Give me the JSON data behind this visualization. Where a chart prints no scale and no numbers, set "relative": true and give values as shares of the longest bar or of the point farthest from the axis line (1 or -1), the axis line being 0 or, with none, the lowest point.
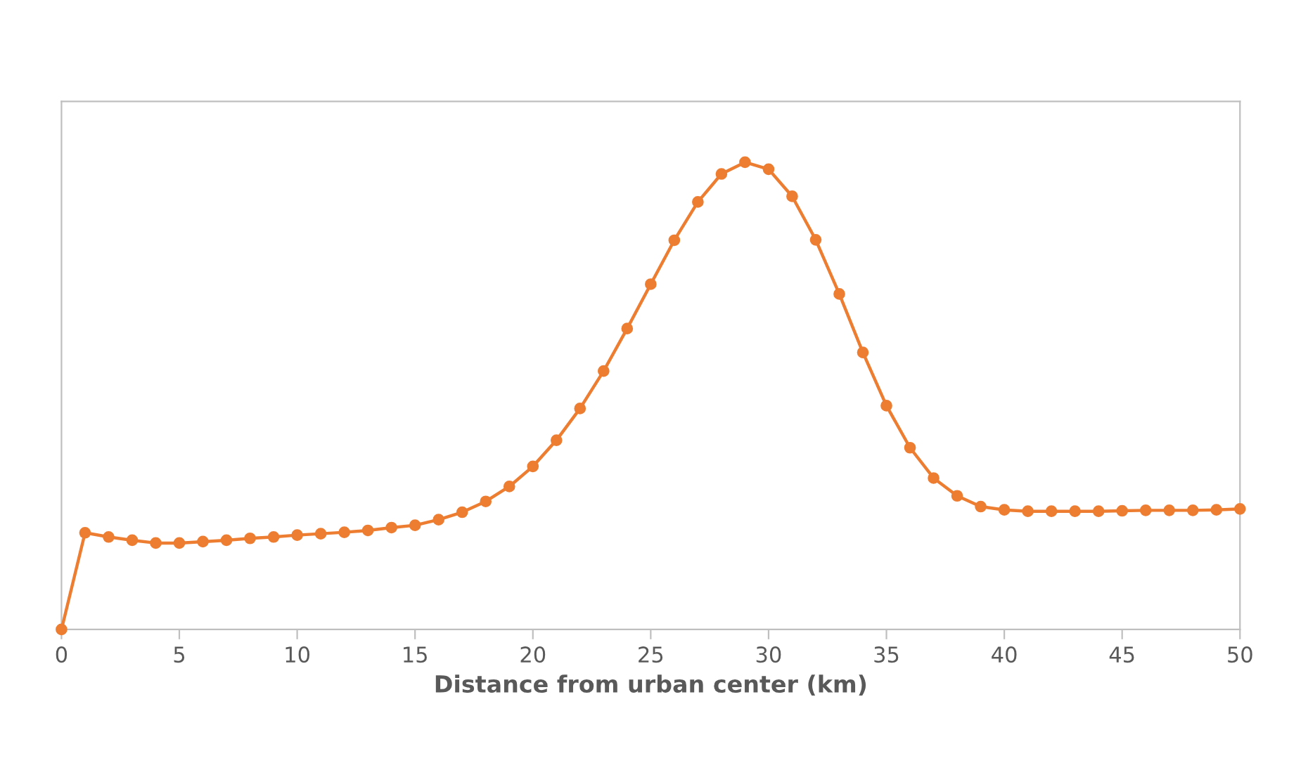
{
  "chart_data": {
    "type": "line",
    "relative": true,
    "xlabel": "Distance from urban center (km)",
    "x": [
      0,
      1,
      2,
      3,
      4,
      5,
      6,
      7,
      8,
      9,
      10,
      11,
      12,
      13,
      14,
      15,
      16,
      17,
      18,
      19,
      20,
      21,
      22,
      23,
      24,
      25,
      26,
      27,
      28,
      29,
      30,
      31,
      32,
      33,
      34,
      35,
      36,
      37,
      38,
      39,
      40,
      41,
      42,
      43,
      44,
      45,
      46,
      47,
      48,
      49,
      50
    ],
    "series": [
      {
        "color": "#ed7d31",
        "values": [
          0,
          0.207,
          0.198,
          0.191,
          0.185,
          0.185,
          0.188,
          0.191,
          0.195,
          0.198,
          0.202,
          0.205,
          0.208,
          0.212,
          0.218,
          0.223,
          0.235,
          0.251,
          0.274,
          0.306,
          0.349,
          0.405,
          0.473,
          0.553,
          0.644,
          0.739,
          0.833,
          0.915,
          0.975,
          1,
          0.985,
          0.927,
          0.834,
          0.718,
          0.593,
          0.479,
          0.389,
          0.324,
          0.286,
          0.263,
          0.256,
          0.253,
          0.253,
          0.253,
          0.253,
          0.254,
          0.255,
          0.255,
          0.255,
          0.256,
          0.258
        ]
      }
    ],
    "xlim": [
      0,
      50
    ],
    "xticks": [
      0,
      5,
      10,
      15,
      20,
      25,
      30,
      35,
      40,
      45,
      50
    ],
    "marker": "circle",
    "line_style": "solid",
    "grid": false,
    "legend": false
  }
}
